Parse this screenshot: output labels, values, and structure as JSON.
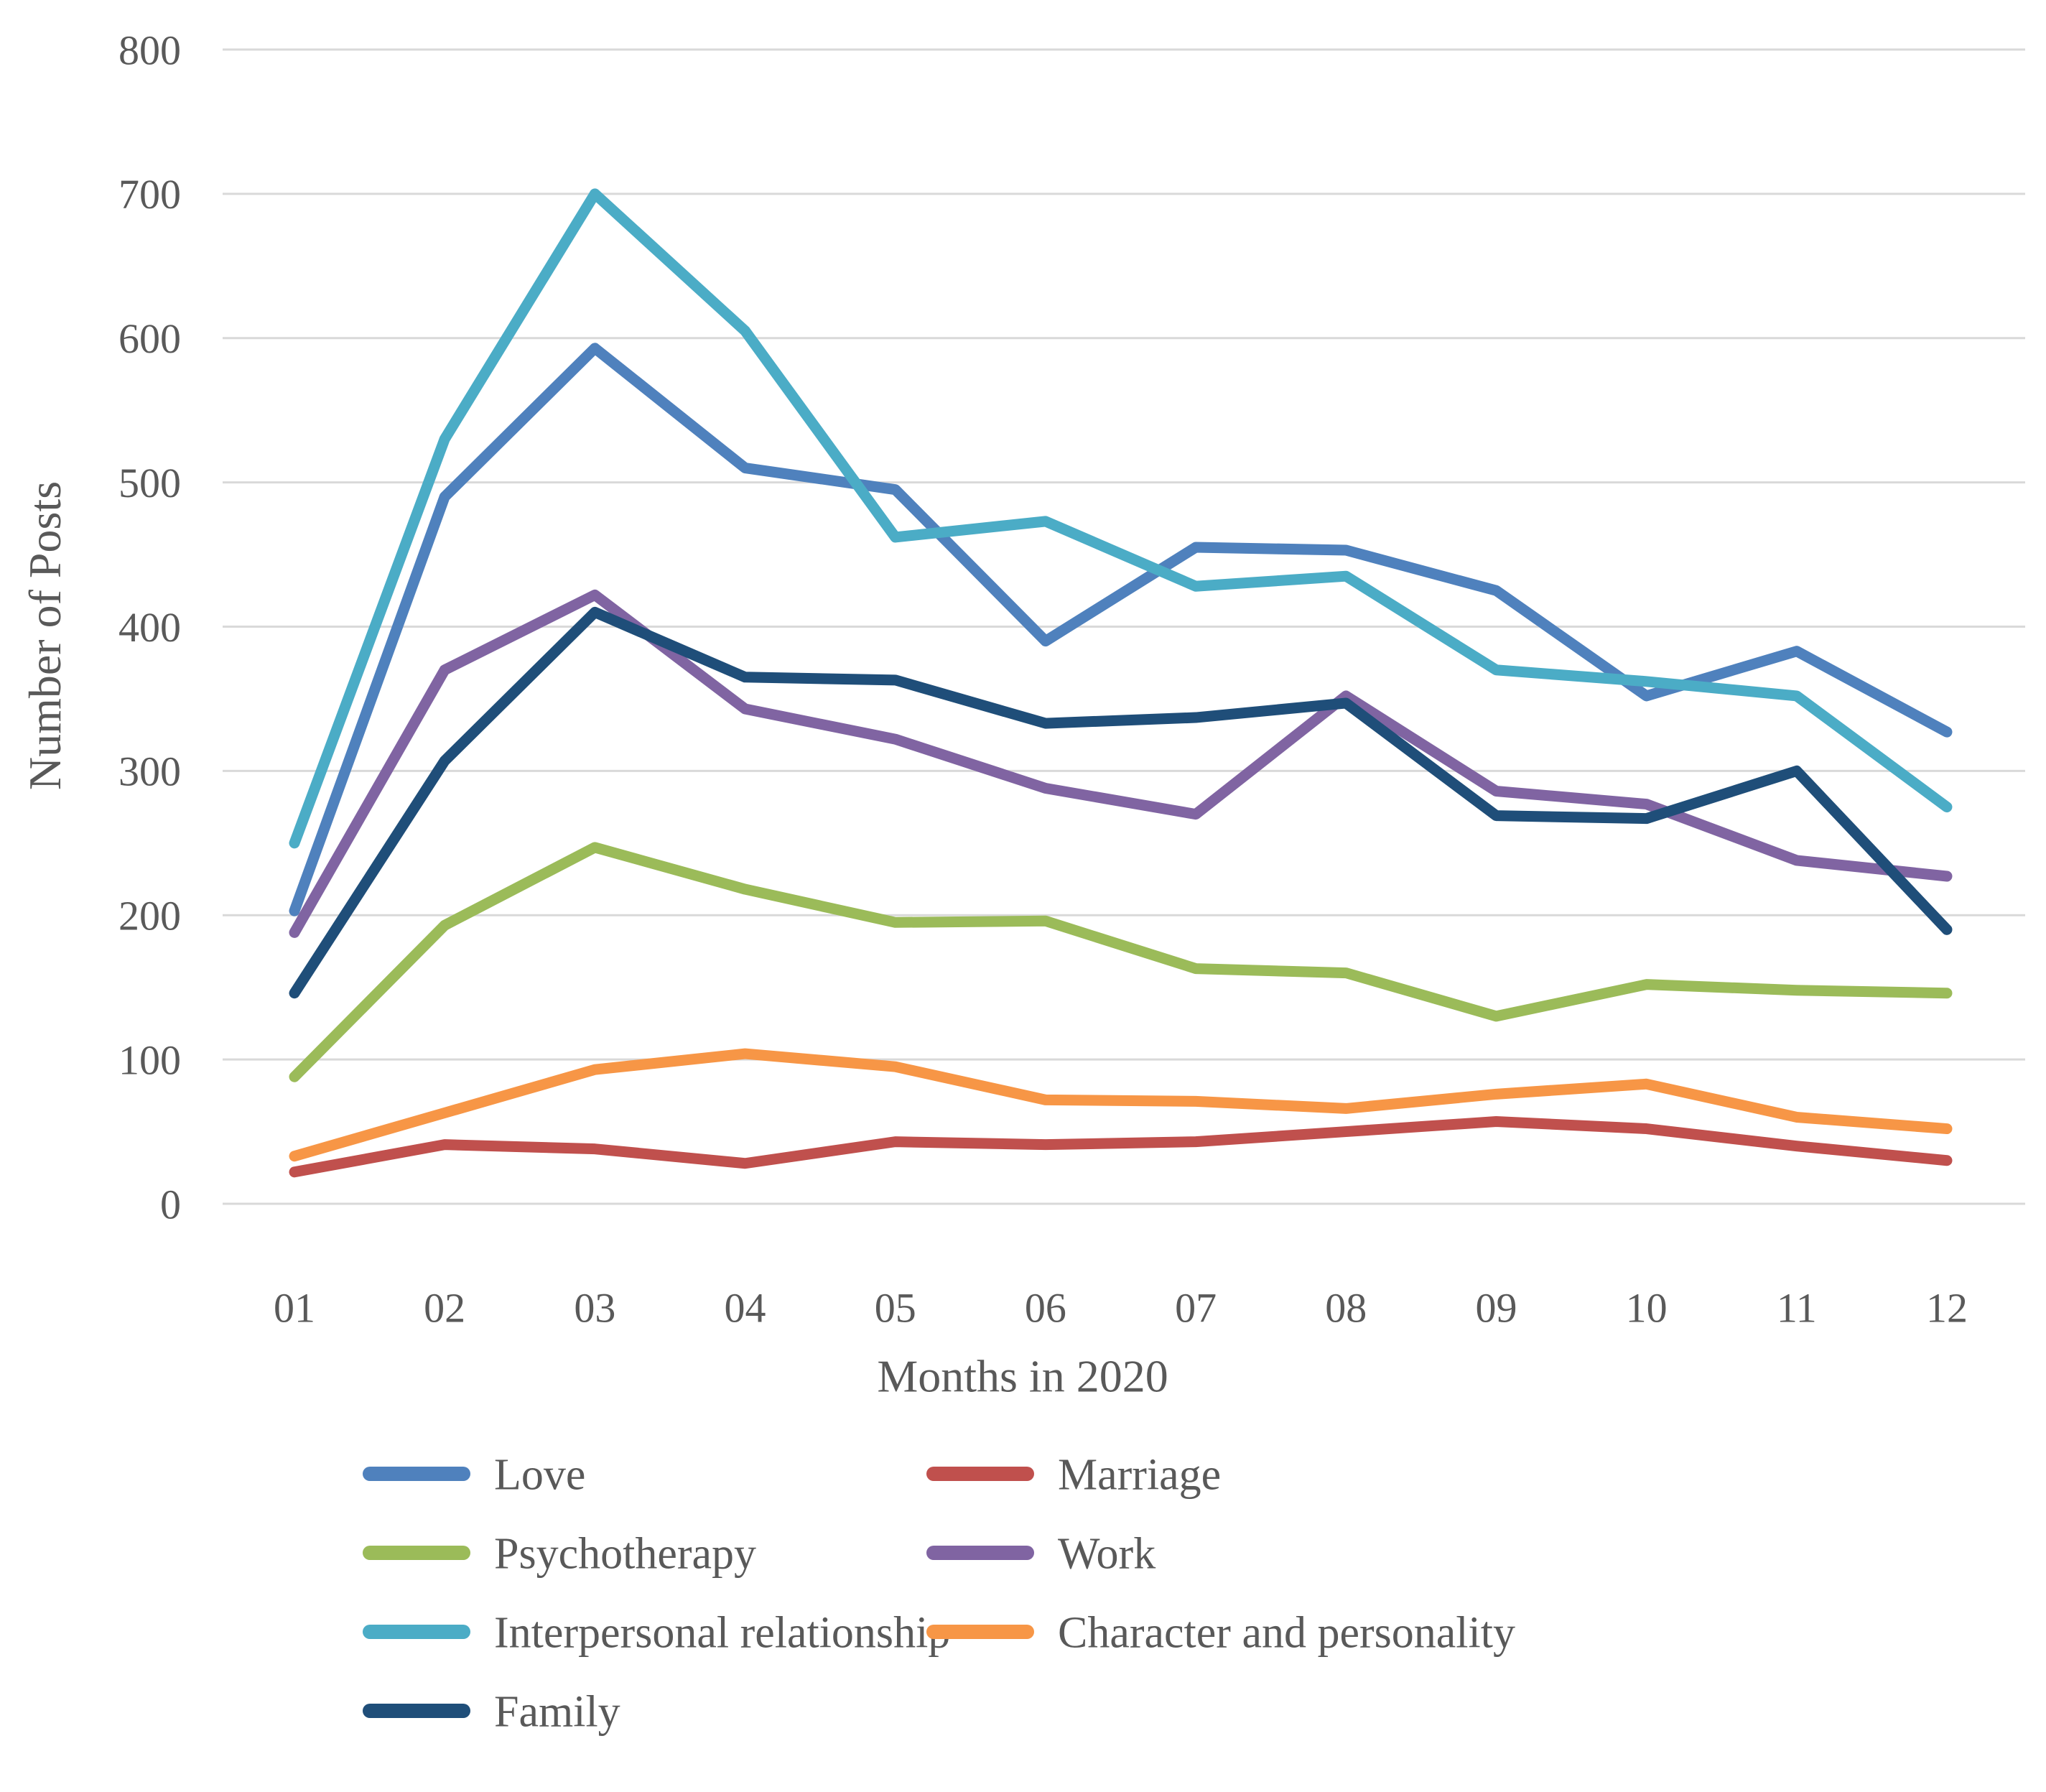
{
  "figure": {
    "background": "#FFFFFF",
    "text_color": "#595959",
    "gridline_color": "#D9D9D9"
  },
  "chart_data": {
    "type": "line",
    "title": "",
    "xlabel": "Months in 2020",
    "ylabel": "Number of Posts",
    "categories": [
      "01",
      "02",
      "03",
      "04",
      "05",
      "06",
      "07",
      "08",
      "09",
      "10",
      "11",
      "12"
    ],
    "yticks": [
      0,
      100,
      200,
      300,
      400,
      500,
      600,
      700,
      800
    ],
    "ylim": [
      0,
      800
    ],
    "ytick_step": 100,
    "grid": true,
    "legend_position": "bottom",
    "legend_columns": 2,
    "series": [
      {
        "name": "Love",
        "color": "#4F81BD",
        "values": [
          203,
          490,
          593,
          510,
          495,
          390,
          455,
          453,
          425,
          352,
          383,
          327
        ]
      },
      {
        "name": "Marriage",
        "color": "#C0504D",
        "values": [
          22,
          41,
          38,
          28,
          43,
          41,
          43,
          50,
          57,
          52,
          40,
          30
        ]
      },
      {
        "name": "Psychotherapy",
        "color": "#9BBB59",
        "values": [
          88,
          193,
          247,
          218,
          195,
          196,
          163,
          160,
          130,
          152,
          148,
          146
        ]
      },
      {
        "name": "Work",
        "color": "#8064A2",
        "values": [
          188,
          370,
          422,
          343,
          322,
          288,
          270,
          352,
          286,
          277,
          238,
          227
        ]
      },
      {
        "name": "Interpersonal relationship",
        "color": "#4BACC6",
        "values": [
          250,
          530,
          700,
          605,
          462,
          473,
          428,
          435,
          370,
          362,
          352,
          275
        ]
      },
      {
        "name": "Character and personality",
        "color": "#F79646",
        "values": [
          33,
          63,
          93,
          104,
          95,
          72,
          71,
          66,
          76,
          83,
          60,
          52
        ]
      },
      {
        "name": "Family",
        "color": "#1F4E79",
        "values": [
          146,
          307,
          410,
          365,
          363,
          333,
          337,
          347,
          269,
          267,
          300,
          190
        ]
      }
    ]
  }
}
